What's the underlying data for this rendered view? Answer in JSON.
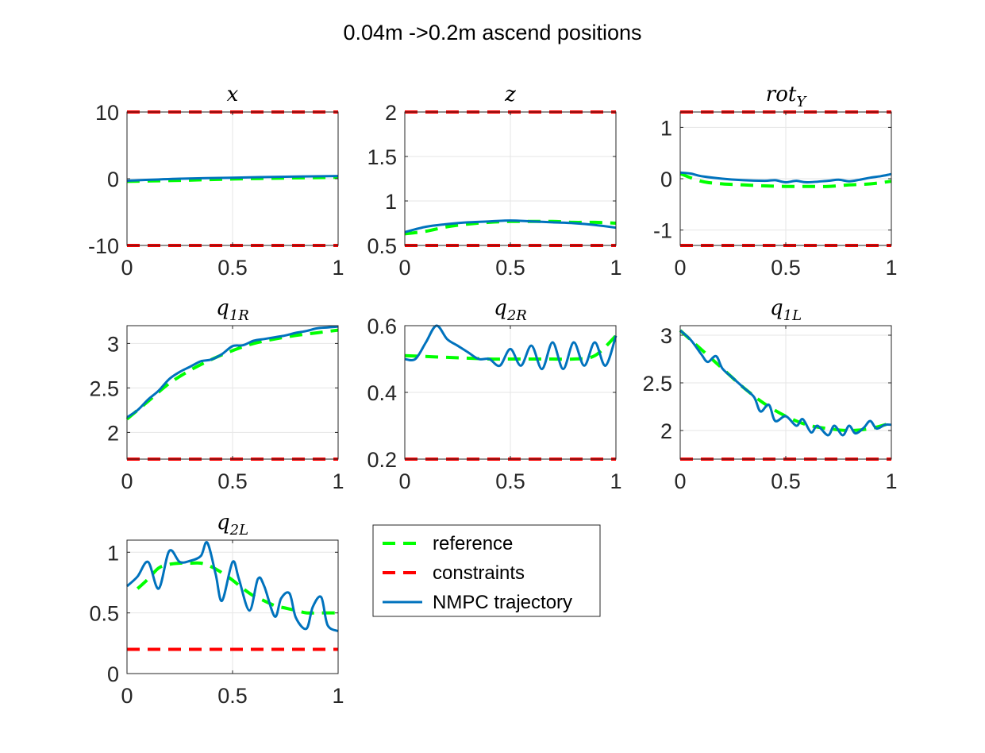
{
  "figure": {
    "title": "0.04m ->0.2m ascend positions"
  },
  "legend": {
    "placement": "right of bottom-left subplot",
    "entries": [
      {
        "label": "reference",
        "color": "#00ff00",
        "style": "dashed"
      },
      {
        "label": "constraints",
        "color": "#ff0000",
        "style": "dashed"
      },
      {
        "label": "NMPC trajectory",
        "color": "#0072bd",
        "style": "solid"
      }
    ]
  },
  "colors": {
    "reference": "#00ff00",
    "constraints": "#ff0000",
    "trajectory": "#0072bd",
    "grid": "#e6e6e6",
    "axis": "#262626"
  },
  "chart_data": [
    {
      "type": "line",
      "title": "x",
      "title_parts": {
        "base": "x",
        "sub": ""
      },
      "xlim": [
        0,
        1
      ],
      "ylim": [
        -10,
        10
      ],
      "xticks": [
        0,
        0.5,
        1
      ],
      "xtick_labels": [
        "0",
        "0.5",
        "1"
      ],
      "yticks": [
        -10,
        0,
        10
      ],
      "ytick_labels": [
        "-10",
        "0",
        "10"
      ],
      "grid": true,
      "series": [
        {
          "role": "reference",
          "x": [
            0,
            0.25,
            0.5,
            0.75,
            1
          ],
          "y": [
            -0.4,
            -0.25,
            -0.05,
            0.1,
            0.2
          ]
        },
        {
          "role": "constraint",
          "x": [
            0,
            1
          ],
          "y": [
            10,
            10
          ]
        },
        {
          "role": "constraint",
          "x": [
            0,
            1
          ],
          "y": [
            -10,
            -10
          ]
        },
        {
          "role": "trajectory",
          "x": [
            0,
            0.25,
            0.5,
            0.75,
            1
          ],
          "y": [
            -0.3,
            0.0,
            0.15,
            0.3,
            0.4
          ]
        }
      ]
    },
    {
      "type": "line",
      "title": "z",
      "title_parts": {
        "base": "z",
        "sub": ""
      },
      "xlim": [
        0,
        1
      ],
      "ylim": [
        0.5,
        2
      ],
      "xticks": [
        0,
        0.5,
        1
      ],
      "xtick_labels": [
        "0",
        "0.5",
        "1"
      ],
      "yticks": [
        0.5,
        1,
        1.5,
        2
      ],
      "ytick_labels": [
        "0.5",
        "1",
        "1.5",
        "2"
      ],
      "grid": true,
      "series": [
        {
          "role": "reference",
          "x": [
            0,
            0.1,
            0.2,
            0.3,
            0.4,
            0.5,
            0.6,
            0.7,
            0.8,
            0.9,
            1
          ],
          "y": [
            0.63,
            0.66,
            0.71,
            0.74,
            0.76,
            0.77,
            0.77,
            0.77,
            0.76,
            0.76,
            0.75
          ]
        },
        {
          "role": "constraint",
          "x": [
            0,
            1
          ],
          "y": [
            2,
            2
          ]
        },
        {
          "role": "constraint",
          "x": [
            0,
            1
          ],
          "y": [
            0.5,
            0.5
          ]
        },
        {
          "role": "trajectory",
          "x": [
            0,
            0.1,
            0.2,
            0.3,
            0.4,
            0.5,
            0.6,
            0.7,
            0.8,
            0.9,
            1
          ],
          "y": [
            0.65,
            0.71,
            0.74,
            0.76,
            0.77,
            0.78,
            0.77,
            0.76,
            0.75,
            0.73,
            0.7
          ]
        }
      ]
    },
    {
      "type": "line",
      "title": "rotY",
      "title_parts": {
        "base": "rot",
        "sub": "Y"
      },
      "xlim": [
        0,
        1
      ],
      "ylim": [
        -1.3,
        1.3
      ],
      "xticks": [
        0,
        0.5,
        1
      ],
      "xtick_labels": [
        "0",
        "0.5",
        "1"
      ],
      "yticks": [
        -1,
        0,
        1
      ],
      "ytick_labels": [
        "-1",
        "0",
        "1"
      ],
      "grid": true,
      "series": [
        {
          "role": "reference",
          "x": [
            0,
            0.1,
            0.2,
            0.3,
            0.4,
            0.5,
            0.6,
            0.7,
            0.8,
            0.9,
            1
          ],
          "y": [
            0.1,
            -0.05,
            -0.1,
            -0.12,
            -0.14,
            -0.15,
            -0.15,
            -0.15,
            -0.12,
            -0.1,
            -0.05
          ]
        },
        {
          "role": "constraint",
          "x": [
            0,
            1
          ],
          "y": [
            1.3,
            1.3
          ]
        },
        {
          "role": "constraint",
          "x": [
            0,
            1
          ],
          "y": [
            -1.3,
            -1.3
          ]
        },
        {
          "role": "trajectory",
          "x": [
            0,
            0.05,
            0.1,
            0.2,
            0.3,
            0.4,
            0.45,
            0.5,
            0.55,
            0.6,
            0.7,
            0.75,
            0.8,
            0.85,
            0.9,
            0.95,
            1
          ],
          "y": [
            0.12,
            0.1,
            0.05,
            0.0,
            -0.03,
            -0.04,
            -0.03,
            -0.07,
            -0.04,
            -0.07,
            -0.04,
            -0.02,
            -0.05,
            -0.02,
            0.02,
            0.05,
            0.09
          ]
        }
      ]
    },
    {
      "type": "line",
      "title": "q1R",
      "title_parts": {
        "base": "q",
        "sub": "1R"
      },
      "xlim": [
        0,
        1
      ],
      "ylim": [
        1.7,
        3.2
      ],
      "xticks": [
        0,
        0.5,
        1
      ],
      "xtick_labels": [
        "0",
        "0.5",
        "1"
      ],
      "yticks": [
        2,
        2.5,
        3
      ],
      "ytick_labels": [
        "2",
        "2.5",
        "3"
      ],
      "grid": true,
      "series": [
        {
          "role": "reference",
          "x": [
            0,
            0.1,
            0.2,
            0.3,
            0.4,
            0.5,
            0.6,
            0.7,
            0.8,
            0.9,
            1
          ],
          "y": [
            2.15,
            2.35,
            2.55,
            2.7,
            2.82,
            2.92,
            3.0,
            3.05,
            3.09,
            3.12,
            3.15
          ]
        },
        {
          "role": "constraint",
          "x": [
            0,
            1
          ],
          "y": [
            1.7,
            1.7
          ]
        },
        {
          "role": "trajectory",
          "x": [
            0,
            0.05,
            0.1,
            0.15,
            0.2,
            0.25,
            0.3,
            0.35,
            0.4,
            0.45,
            0.5,
            0.55,
            0.6,
            0.65,
            0.7,
            0.75,
            0.8,
            0.85,
            0.9,
            0.95,
            1
          ],
          "y": [
            2.17,
            2.25,
            2.37,
            2.47,
            2.6,
            2.68,
            2.74,
            2.8,
            2.82,
            2.88,
            2.97,
            2.98,
            3.03,
            3.05,
            3.07,
            3.09,
            3.12,
            3.14,
            3.17,
            3.18,
            3.19
          ]
        }
      ]
    },
    {
      "type": "line",
      "title": "q2R",
      "title_parts": {
        "base": "q",
        "sub": "2R"
      },
      "xlim": [
        0,
        1
      ],
      "ylim": [
        0.2,
        0.6
      ],
      "xticks": [
        0,
        0.5,
        1
      ],
      "xtick_labels": [
        "0",
        "0.5",
        "1"
      ],
      "yticks": [
        0.2,
        0.4,
        0.6
      ],
      "ytick_labels": [
        "0.2",
        "0.4",
        "0.6"
      ],
      "grid": true,
      "series": [
        {
          "role": "reference",
          "x": [
            0,
            0.2,
            0.4,
            0.5,
            0.6,
            0.7,
            0.8,
            0.9,
            1
          ],
          "y": [
            0.51,
            0.505,
            0.5,
            0.5,
            0.5,
            0.5,
            0.5,
            0.51,
            0.57
          ]
        },
        {
          "role": "constraint",
          "x": [
            0,
            1
          ],
          "y": [
            0.2,
            0.2
          ]
        },
        {
          "role": "trajectory",
          "x": [
            0,
            0.05,
            0.1,
            0.15,
            0.2,
            0.25,
            0.3,
            0.35,
            0.4,
            0.45,
            0.5,
            0.55,
            0.6,
            0.65,
            0.7,
            0.75,
            0.8,
            0.85,
            0.9,
            0.95,
            1
          ],
          "y": [
            0.5,
            0.5,
            0.55,
            0.6,
            0.56,
            0.54,
            0.52,
            0.5,
            0.5,
            0.48,
            0.53,
            0.48,
            0.54,
            0.47,
            0.55,
            0.47,
            0.55,
            0.48,
            0.55,
            0.48,
            0.57
          ]
        }
      ]
    },
    {
      "type": "line",
      "title": "q1L",
      "title_parts": {
        "base": "q",
        "sub": "1L"
      },
      "xlim": [
        0,
        1
      ],
      "ylim": [
        1.7,
        3.1
      ],
      "xticks": [
        0,
        0.5,
        1
      ],
      "xtick_labels": [
        "0",
        "0.5",
        "1"
      ],
      "yticks": [
        2,
        2.5,
        3
      ],
      "ytick_labels": [
        "2",
        "2.5",
        "3"
      ],
      "grid": true,
      "series": [
        {
          "role": "reference",
          "x": [
            0,
            0.1,
            0.2,
            0.3,
            0.4,
            0.5,
            0.6,
            0.7,
            0.8,
            0.9,
            1
          ],
          "y": [
            3.05,
            2.85,
            2.65,
            2.45,
            2.28,
            2.15,
            2.06,
            2.02,
            2.0,
            2.02,
            2.08
          ]
        },
        {
          "role": "constraint",
          "x": [
            0,
            1
          ],
          "y": [
            1.7,
            1.7
          ]
        },
        {
          "role": "trajectory",
          "x": [
            0,
            0.05,
            0.1,
            0.13,
            0.17,
            0.2,
            0.25,
            0.3,
            0.35,
            0.38,
            0.42,
            0.45,
            0.5,
            0.55,
            0.58,
            0.62,
            0.65,
            0.7,
            0.73,
            0.77,
            0.8,
            0.83,
            0.87,
            0.9,
            0.93,
            0.97,
            1
          ],
          "y": [
            3.05,
            2.95,
            2.8,
            2.72,
            2.78,
            2.65,
            2.55,
            2.45,
            2.35,
            2.2,
            2.27,
            2.1,
            2.15,
            2.05,
            2.12,
            1.98,
            2.05,
            1.95,
            2.05,
            1.95,
            2.05,
            1.97,
            2.03,
            2.1,
            2.02,
            2.06,
            2.06
          ]
        }
      ]
    },
    {
      "type": "line",
      "title": "q2L",
      "title_parts": {
        "base": "q",
        "sub": "2L"
      },
      "xlim": [
        0,
        1
      ],
      "ylim": [
        0,
        1.1
      ],
      "xticks": [
        0,
        0.5,
        1
      ],
      "xtick_labels": [
        "0",
        "0.5",
        "1"
      ],
      "yticks": [
        0,
        0.5,
        1
      ],
      "ytick_labels": [
        "0",
        "0.5",
        "1"
      ],
      "grid": true,
      "series": [
        {
          "role": "reference",
          "x": [
            0.05,
            0.1,
            0.15,
            0.2,
            0.25,
            0.3,
            0.35,
            0.4,
            0.45,
            0.5,
            0.55,
            0.6,
            0.65,
            0.7,
            0.75,
            0.8,
            0.85,
            0.9,
            0.95,
            1
          ],
          "y": [
            0.7,
            0.78,
            0.87,
            0.9,
            0.91,
            0.91,
            0.91,
            0.88,
            0.83,
            0.77,
            0.7,
            0.64,
            0.6,
            0.56,
            0.54,
            0.52,
            0.5,
            0.5,
            0.5,
            0.5
          ]
        },
        {
          "role": "constraint",
          "x": [
            0,
            1
          ],
          "y": [
            0.2,
            0.2
          ]
        },
        {
          "role": "trajectory",
          "x": [
            0,
            0.05,
            0.1,
            0.15,
            0.2,
            0.25,
            0.3,
            0.35,
            0.38,
            0.42,
            0.45,
            0.5,
            0.53,
            0.58,
            0.62,
            0.65,
            0.7,
            0.73,
            0.77,
            0.8,
            0.85,
            0.88,
            0.92,
            0.95,
            1
          ],
          "y": [
            0.72,
            0.8,
            0.92,
            0.7,
            1.01,
            0.92,
            0.93,
            0.97,
            1.08,
            0.82,
            0.6,
            0.92,
            0.78,
            0.52,
            0.78,
            0.72,
            0.47,
            0.62,
            0.66,
            0.46,
            0.37,
            0.55,
            0.63,
            0.4,
            0.35
          ]
        }
      ]
    }
  ]
}
